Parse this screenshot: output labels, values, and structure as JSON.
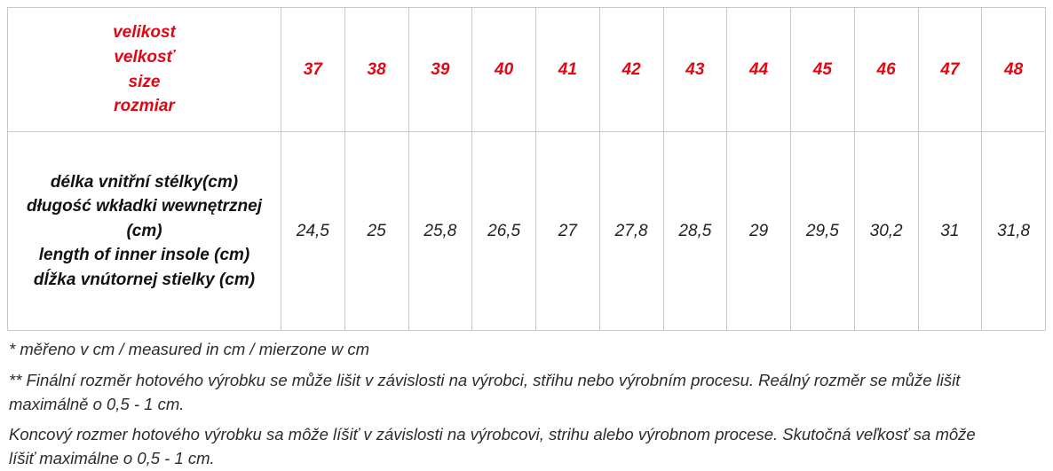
{
  "table": {
    "header": {
      "label_lines": [
        "velikost",
        "velkosť",
        "size",
        "rozmiar"
      ],
      "sizes": [
        "37",
        "38",
        "39",
        "40",
        "41",
        "42",
        "43",
        "44",
        "45",
        "46",
        "47",
        "48"
      ]
    },
    "row": {
      "label_lines": [
        "délka vnitřní stélky(cm)",
        "długość wkładki wewnętrznej (cm)",
        "length of inner insole (cm)",
        "dĺžka vnútornej stielky (cm)"
      ],
      "values": [
        "24,5",
        "25",
        "25,8",
        "26,5",
        "27",
        "27,8",
        "28,5",
        "29",
        "29,5",
        "30,2",
        "31",
        "31,8"
      ]
    }
  },
  "footnotes": [
    "* měřeno v cm / measured in cm / mierzone w cm",
    "** Finální rozměr hotového výrobku se může lišit v závislosti na výrobci, střihu nebo výrobním procesu. Reálný rozměr se může lišit maximálně o 0,5 - 1 cm.",
    "Koncový rozmer hotového výrobku sa môže líšiť v závislosti na výrobcovi, strihu alebo výrobnom procese. Skutočná veľkosť sa môže líšiť maximálne o 0,5 - 1 cm."
  ],
  "colors": {
    "accent_red": "#e30613",
    "border_gray": "#c9c9c9",
    "text_dark": "#222222"
  }
}
